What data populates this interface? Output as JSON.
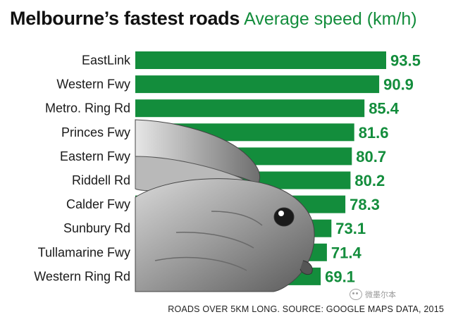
{
  "chart_data": {
    "type": "bar",
    "orientation": "horizontal",
    "title": "Melbourne’s fastest roads",
    "subtitle": "Average speed (km/h)",
    "categories": [
      "EastLink",
      "Western Fwy",
      "Metro. Ring Rd",
      "Princes Fwy",
      "Eastern Fwy",
      "Riddell Rd",
      "Calder Fwy",
      "Sunbury Rd",
      "Tullamarine Fwy",
      "Western Ring Rd"
    ],
    "values": [
      93.5,
      90.9,
      85.4,
      81.6,
      80.7,
      80.2,
      78.3,
      73.1,
      71.4,
      69.1
    ],
    "data_labels": [
      "93.5",
      "90.9",
      "85.4",
      "81.6",
      "80.7",
      "80.2",
      "78.3",
      "73.1",
      "71.4",
      "69.1"
    ],
    "footnote": "ROADS OVER 5KM LONG. SOURCE: GOOGLE MAPS DATA, 2015",
    "grid": false,
    "legend": "none",
    "colors": {
      "bar": "#138d3c",
      "value_label": "#138d3c",
      "subtitle": "#138d3c"
    }
  },
  "watermark": {
    "text": "微墨尔本",
    "icon": "wechat-icon"
  }
}
